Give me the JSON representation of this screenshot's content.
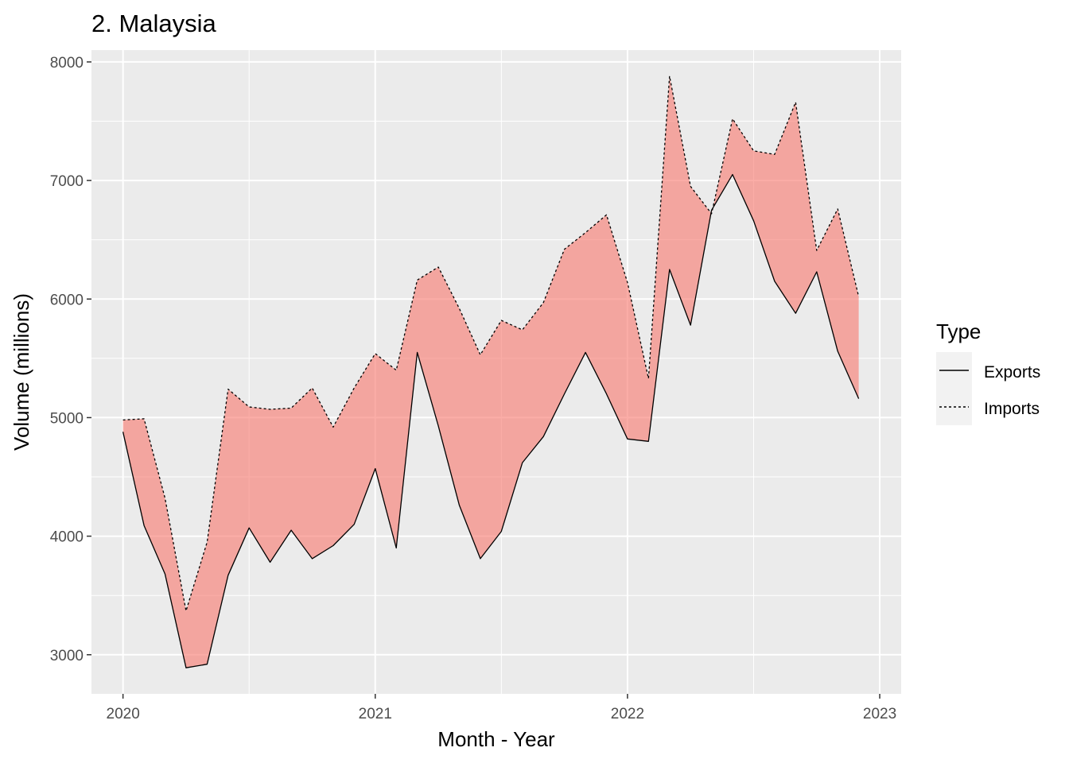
{
  "chart_data": {
    "type": "area",
    "title": "2. Malaysia",
    "xlabel": "Month - Year",
    "ylabel": "Volume (millions)",
    "xlim": [
      2019.875,
      2023.085
    ],
    "ylim": [
      2670,
      8100
    ],
    "x_ticks": [
      {
        "value": 2020,
        "label": "2020"
      },
      {
        "value": 2021,
        "label": "2021"
      },
      {
        "value": 2022,
        "label": "2022"
      },
      {
        "value": 2023,
        "label": "2023"
      }
    ],
    "y_ticks": [
      {
        "value": 3000,
        "label": "3000"
      },
      {
        "value": 4000,
        "label": "4000"
      },
      {
        "value": 5000,
        "label": "5000"
      },
      {
        "value": 6000,
        "label": "6000"
      },
      {
        "value": 7000,
        "label": "7000"
      },
      {
        "value": 8000,
        "label": "8000"
      }
    ],
    "grid": true,
    "legend_position": "right",
    "legend_title": "Type",
    "x": [
      "2020-01",
      "2020-02",
      "2020-03",
      "2020-04",
      "2020-05",
      "2020-06",
      "2020-07",
      "2020-08",
      "2020-09",
      "2020-10",
      "2020-11",
      "2020-12",
      "2021-01",
      "2021-02",
      "2021-03",
      "2021-04",
      "2021-05",
      "2021-06",
      "2021-07",
      "2021-08",
      "2021-09",
      "2021-10",
      "2021-11",
      "2021-12",
      "2022-01",
      "2022-02",
      "2022-03",
      "2022-04",
      "2022-05",
      "2022-06",
      "2022-07",
      "2022-08",
      "2022-09",
      "2022-10",
      "2022-11",
      "2022-12"
    ],
    "series": [
      {
        "name": "Exports",
        "linetype": "solid",
        "values": [
          4880,
          4090,
          3680,
          2890,
          2920,
          3670,
          4070,
          3780,
          4050,
          3810,
          3920,
          4100,
          4570,
          3900,
          5550,
          4930,
          4260,
          3810,
          4040,
          4620,
          4840,
          5200,
          5550,
          5200,
          4820,
          4800,
          6250,
          5780,
          6750,
          7050,
          6660,
          6150,
          5880,
          6230,
          5560,
          5160
        ]
      },
      {
        "name": "Imports",
        "linetype": "dashed",
        "values": [
          4980,
          4990,
          4320,
          3370,
          3950,
          5240,
          5090,
          5070,
          5080,
          5250,
          4920,
          5250,
          5540,
          5400,
          6160,
          6270,
          5920,
          5530,
          5820,
          5740,
          5970,
          6420,
          6560,
          6710,
          6140,
          5330,
          7880,
          6950,
          6720,
          7520,
          7250,
          7220,
          7660,
          6410,
          6760,
          6020
        ]
      }
    ],
    "fill_color": "#F8766D",
    "fill_opacity": 0.6,
    "crossover_color": "#00BFC4",
    "panel_background": "#EBEBEB",
    "grid_color": "#FFFFFF"
  }
}
